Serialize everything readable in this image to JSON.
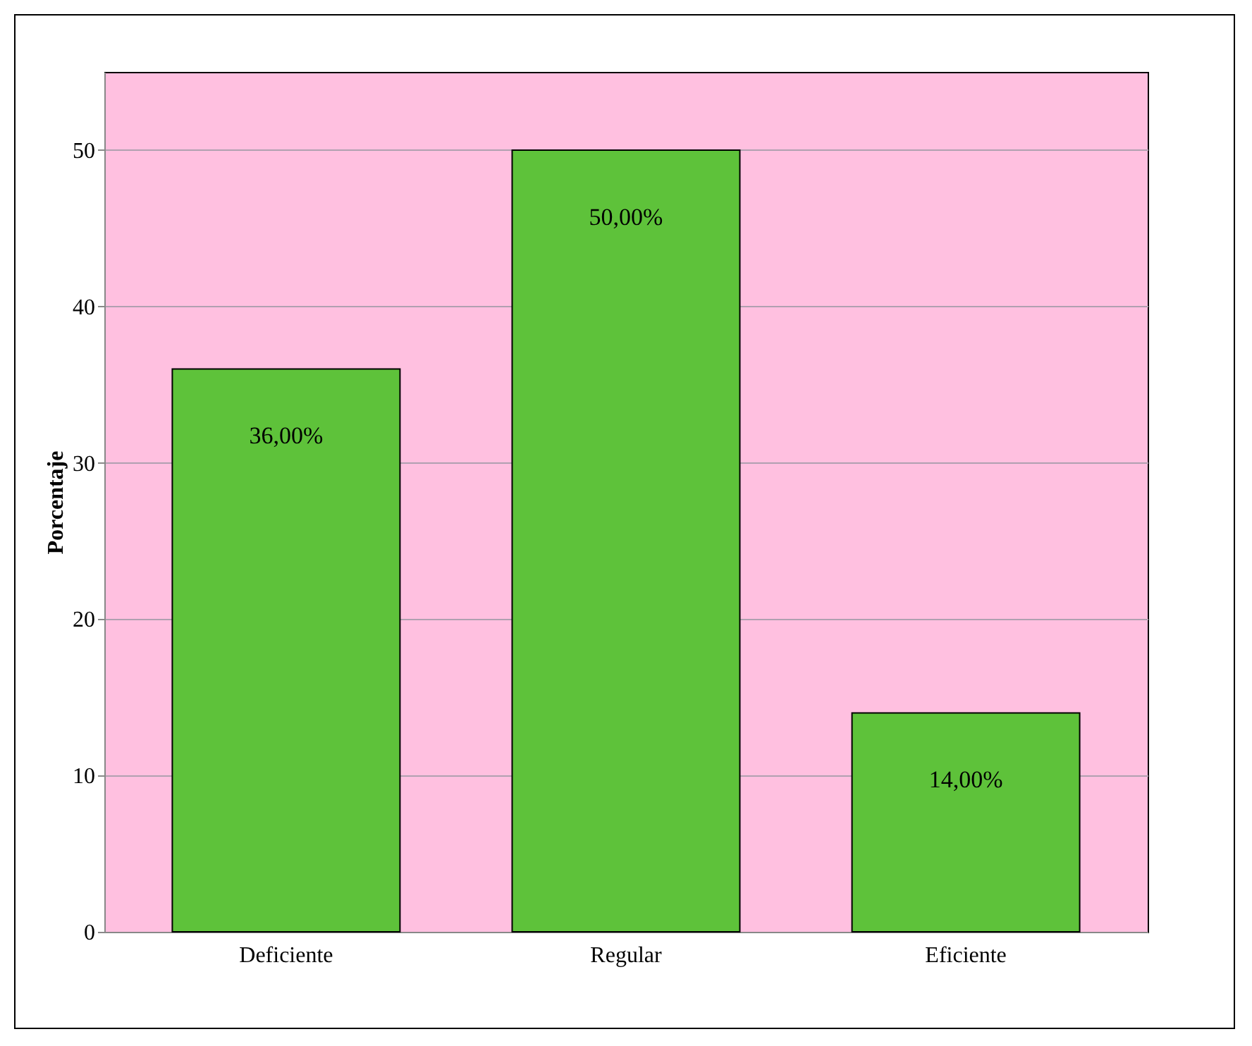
{
  "chart_data": {
    "type": "bar",
    "ylabel": "Porcentaje",
    "categories": [
      "Deficiente",
      "Regular",
      "Eficiente"
    ],
    "values": [
      36,
      50,
      14
    ],
    "value_labels": [
      "36,00%",
      "50,00%",
      "14,00%"
    ],
    "color": "#5ec23a",
    "ylim": [
      0,
      55
    ],
    "yticks": [
      0,
      10,
      20,
      30,
      40,
      50
    ],
    "grid": "y"
  }
}
